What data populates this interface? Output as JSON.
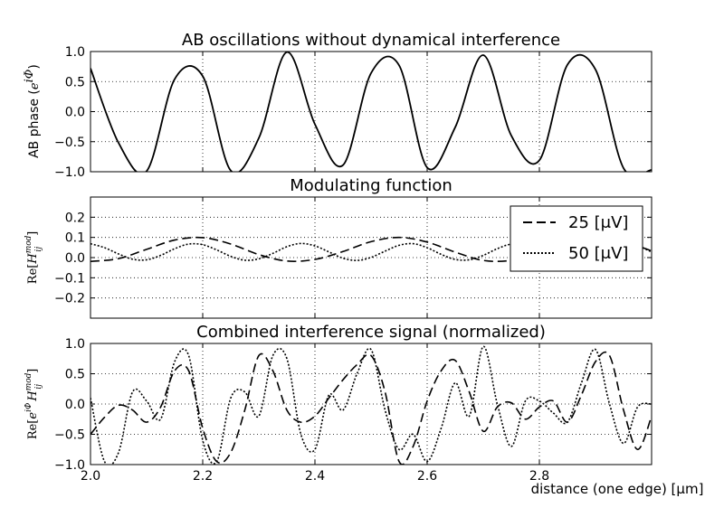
{
  "chart_data": [
    {
      "type": "line",
      "title": "AB oscillations without dynamical interference",
      "ylabel": "AB phase (e^{iΦ})",
      "ylabel_plain": "AB phase (",
      "ylabel_math": "e",
      "ylabel_sup": "iΦ",
      "ylabel_close": ")",
      "xlim": [
        2.0,
        3.0
      ],
      "ylim": [
        -1.0,
        1.0
      ],
      "yticks": [
        "1.0",
        "0.5",
        "0.0",
        "−0.5",
        "−1.0"
      ],
      "ytick_values": [
        1.0,
        0.5,
        0.0,
        -0.5,
        -1.0
      ],
      "xgrid": [
        2.2,
        2.4,
        2.6,
        2.8
      ],
      "grid": true,
      "series": [
        {
          "style": "solid",
          "x": [
            2.0,
            2.05,
            2.1,
            2.15,
            2.2,
            2.25,
            2.3,
            2.35,
            2.4,
            2.45,
            2.5,
            2.55,
            2.6,
            2.65,
            2.7,
            2.75,
            2.8,
            2.85,
            2.9,
            2.95,
            3.0
          ],
          "y": [
            0.72,
            -0.52,
            -0.99,
            0.54,
            0.59,
            -0.98,
            -0.44,
            0.99,
            -0.21,
            -0.89,
            0.64,
            0.77,
            -0.93,
            -0.26,
            0.94,
            -0.4,
            -0.81,
            0.78,
            0.7,
            -0.94,
            -0.97
          ]
        }
      ]
    },
    {
      "type": "line",
      "title": "Modulating function",
      "ylabel": "Re[H_ij^mod]",
      "ylabel_pre": "Re[",
      "ylabel_math": "H",
      "ylabel_sub": "ij",
      "ylabel_sup": "mod",
      "ylabel_close": "]",
      "xlim": [
        2.0,
        3.0
      ],
      "ylim": [
        -0.3,
        0.3
      ],
      "yticks": [
        "0.2",
        "0.1",
        "0.0",
        "−0.1",
        "−0.2"
      ],
      "ytick_values": [
        0.2,
        0.1,
        0.0,
        -0.1,
        -0.2
      ],
      "xgrid": [
        2.2,
        2.4,
        2.6,
        2.8
      ],
      "grid": true,
      "legend": {
        "position": "upper-right",
        "entries": [
          "25 [μV]",
          "50 [μV]"
        ]
      },
      "series": [
        {
          "name": "25 [μV]",
          "style": "dashed",
          "x": [
            2.0,
            2.05,
            2.1,
            2.15,
            2.2,
            2.25,
            2.3,
            2.35,
            2.4,
            2.45,
            2.5,
            2.55,
            2.6,
            2.65,
            2.7,
            2.75,
            2.8,
            2.85,
            2.9,
            2.95,
            3.0
          ],
          "y": [
            -0.019,
            -0.005,
            0.041,
            0.087,
            0.099,
            0.067,
            0.015,
            -0.017,
            -0.009,
            0.03,
            0.079,
            0.1,
            0.077,
            0.027,
            -0.014,
            -0.014,
            0.024,
            0.075,
            0.1,
            0.081,
            0.033
          ]
        },
        {
          "name": "50 [μV]",
          "style": "dotted",
          "x": [
            2.0,
            2.025,
            2.05,
            2.075,
            2.1,
            2.125,
            2.15,
            2.175,
            2.2,
            2.225,
            2.25,
            2.275,
            2.3,
            2.325,
            2.35,
            2.375,
            2.4,
            2.425,
            2.45,
            2.475,
            2.5,
            2.525,
            2.55,
            2.575,
            2.6,
            2.625,
            2.65,
            2.675,
            2.7,
            2.725,
            2.75,
            2.775,
            2.8,
            2.825,
            2.85,
            2.875,
            2.9,
            2.925,
            2.95,
            2.975,
            3.0
          ],
          "y": [
            0.069,
            0.049,
            0.018,
            -0.008,
            -0.011,
            0.011,
            0.044,
            0.067,
            0.064,
            0.038,
            0.006,
            -0.013,
            -0.006,
            0.021,
            0.054,
            0.07,
            0.058,
            0.028,
            -0.003,
            -0.014,
            0.001,
            0.032,
            0.061,
            0.069,
            0.049,
            0.016,
            -0.009,
            -0.011,
            0.011,
            0.044,
            0.067,
            0.064,
            0.038,
            0.006,
            -0.013,
            -0.006,
            0.021,
            0.054,
            0.07,
            0.058,
            0.028
          ]
        }
      ]
    },
    {
      "type": "line",
      "title": "Combined interference signal (normalized)",
      "ylabel": "Re[e^{iΦ} H_ij^mod]",
      "ylabel_pre": "Re[",
      "ylabel_math1": "e",
      "ylabel_sup1": "iΦ",
      "ylabel_math2": "H",
      "ylabel_sub2": "ij",
      "ylabel_sup2": "mod",
      "ylabel_close": "]",
      "xlabel": "distance (one edge) [μm]",
      "xlim": [
        2.0,
        3.0
      ],
      "ylim": [
        -1.0,
        1.0
      ],
      "xticks": [
        "2.0",
        "2.2",
        "2.4",
        "2.6",
        "2.8"
      ],
      "xtick_values": [
        2.0,
        2.2,
        2.4,
        2.6,
        2.8
      ],
      "yticks": [
        "1.0",
        "0.5",
        "0.0",
        "−0.5",
        "−1.0"
      ],
      "ytick_values": [
        1.0,
        0.5,
        0.0,
        -0.5,
        -1.0
      ],
      "xgrid": [
        2.2,
        2.4,
        2.6,
        2.8
      ],
      "grid": true,
      "series": [
        {
          "name": "25 [μV]",
          "style": "dashed",
          "x": [
            2.0,
            2.025,
            2.05,
            2.075,
            2.1,
            2.125,
            2.15,
            2.175,
            2.2,
            2.225,
            2.25,
            2.275,
            2.3,
            2.325,
            2.35,
            2.375,
            2.4,
            2.425,
            2.45,
            2.475,
            2.5,
            2.525,
            2.55,
            2.575,
            2.6,
            2.625,
            2.65,
            2.675,
            2.7,
            2.725,
            2.75,
            2.775,
            2.8,
            2.825,
            2.85,
            2.875,
            2.9,
            2.925,
            2.95,
            2.975,
            3.0
          ],
          "y": [
            -0.5,
            -0.22,
            -0.02,
            -0.1,
            -0.3,
            -0.05,
            0.55,
            0.55,
            -0.4,
            -0.95,
            -0.8,
            -0.1,
            0.8,
            0.55,
            -0.1,
            -0.3,
            -0.2,
            0.1,
            0.4,
            0.65,
            0.8,
            0.2,
            -0.95,
            -0.7,
            0.05,
            0.55,
            0.72,
            0.2,
            -0.45,
            -0.05,
            0.02,
            -0.25,
            -0.05,
            0.05,
            -0.3,
            0.15,
            0.7,
            0.8,
            -0.1,
            -0.75,
            -0.2
          ]
        },
        {
          "name": "50 [μV]",
          "style": "dotted",
          "x": [
            2.0,
            2.025,
            2.05,
            2.075,
            2.1,
            2.125,
            2.15,
            2.175,
            2.2,
            2.225,
            2.25,
            2.275,
            2.3,
            2.325,
            2.35,
            2.375,
            2.4,
            2.425,
            2.45,
            2.475,
            2.5,
            2.525,
            2.55,
            2.575,
            2.6,
            2.625,
            2.65,
            2.675,
            2.7,
            2.725,
            2.75,
            2.775,
            2.8,
            2.825,
            2.85,
            2.875,
            2.9,
            2.925,
            2.95,
            2.975,
            3.0
          ],
          "y": [
            0.1,
            -0.95,
            -0.8,
            0.2,
            0.05,
            -0.25,
            0.7,
            0.8,
            -0.6,
            -0.95,
            0.1,
            0.2,
            -0.2,
            0.8,
            0.75,
            -0.5,
            -0.75,
            0.15,
            -0.1,
            0.5,
            0.9,
            -0.1,
            -0.75,
            -0.5,
            -0.95,
            -0.4,
            0.35,
            -0.2,
            0.95,
            0.0,
            -0.7,
            0.05,
            0.05,
            -0.15,
            -0.3,
            0.35,
            0.9,
            0.0,
            -0.65,
            -0.05,
            0.0
          ]
        }
      ]
    }
  ]
}
